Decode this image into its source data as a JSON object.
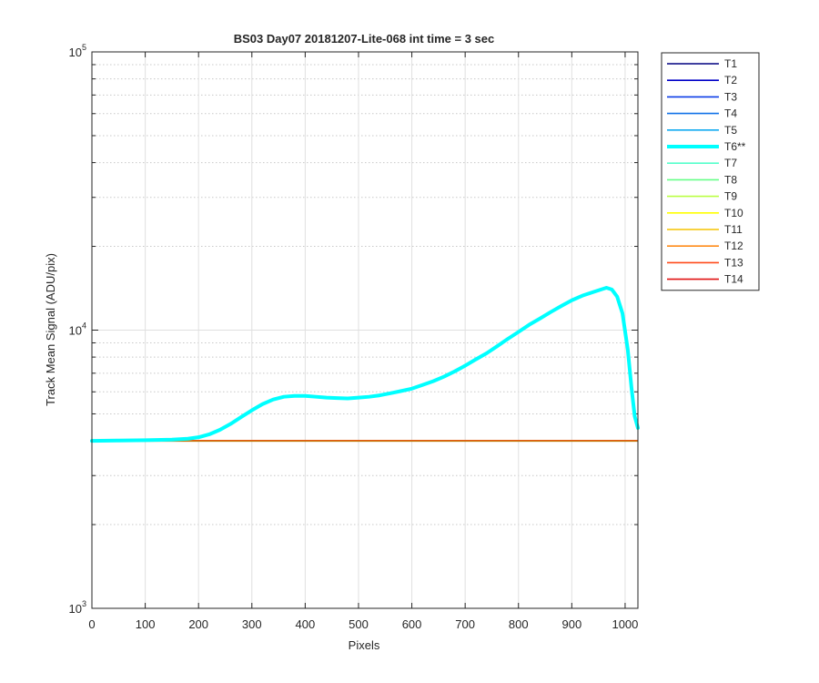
{
  "chart_data": {
    "type": "line",
    "title": "BS03 Day07 20181207-Lite-068 int time = 3 sec",
    "xlabel": "Pixels",
    "ylabel": "Track Mean Signal (ADU/pix)",
    "xlim": [
      0,
      1024
    ],
    "ylim": [
      1000,
      100000
    ],
    "yscale": "log",
    "grid": true,
    "legend_position": "outside-top-right",
    "x_ticks": [
      "0",
      "100",
      "200",
      "300",
      "400",
      "500",
      "600",
      "700",
      "800",
      "900",
      "1000"
    ],
    "y_ticks": [
      {
        "base": "10",
        "exp": "3"
      },
      {
        "base": "10",
        "exp": "4"
      },
      {
        "base": "10",
        "exp": "5"
      }
    ],
    "series": [
      {
        "name": "T1",
        "color": "#000080",
        "bold": false
      },
      {
        "name": "T2",
        "color": "#0000c8",
        "bold": false
      },
      {
        "name": "T3",
        "color": "#0a3be8",
        "bold": false
      },
      {
        "name": "T4",
        "color": "#1172e8",
        "bold": false
      },
      {
        "name": "T5",
        "color": "#10aaf0",
        "bold": false
      },
      {
        "name": "T6**",
        "color": "#00ffff",
        "bold": true,
        "x": [
          0,
          50,
          100,
          150,
          180,
          200,
          220,
          240,
          260,
          280,
          300,
          320,
          340,
          360,
          380,
          400,
          420,
          440,
          460,
          480,
          500,
          520,
          540,
          560,
          580,
          600,
          620,
          640,
          660,
          680,
          700,
          720,
          740,
          760,
          780,
          800,
          820,
          840,
          860,
          880,
          900,
          920,
          940,
          955,
          965,
          975,
          985,
          995,
          1005,
          1012,
          1018,
          1024
        ],
        "y": [
          4000,
          4010,
          4020,
          4040,
          4070,
          4120,
          4220,
          4380,
          4600,
          4870,
          5150,
          5420,
          5630,
          5760,
          5800,
          5800,
          5760,
          5720,
          5700,
          5680,
          5720,
          5760,
          5830,
          5930,
          6040,
          6160,
          6350,
          6550,
          6800,
          7100,
          7450,
          7850,
          8250,
          8750,
          9300,
          9850,
          10450,
          11000,
          11600,
          12200,
          12800,
          13300,
          13700,
          14000,
          14200,
          14000,
          13200,
          11500,
          8500,
          6200,
          4900,
          4450
        ]
      },
      {
        "name": "T7",
        "color": "#55ffcc",
        "bold": false
      },
      {
        "name": "T8",
        "color": "#66ff88",
        "bold": false
      },
      {
        "name": "T9",
        "color": "#bbff44",
        "bold": false
      },
      {
        "name": "T10",
        "color": "#ffff00",
        "bold": false
      },
      {
        "name": "T11",
        "color": "#f5c400",
        "bold": false
      },
      {
        "name": "T12",
        "color": "#ff8c1a",
        "bold": false
      },
      {
        "name": "T13",
        "color": "#ff4a1a",
        "bold": false
      },
      {
        "name": "T14",
        "color": "#e01010",
        "bold": false
      }
    ],
    "baseline": {
      "value": 4000,
      "colors": [
        "#e01010",
        "#ff8c1a",
        "#c47a10"
      ]
    }
  }
}
